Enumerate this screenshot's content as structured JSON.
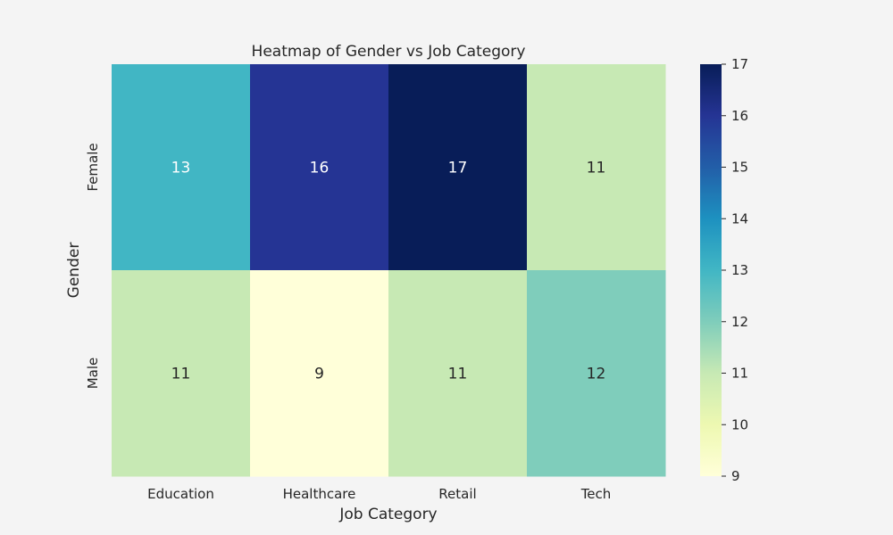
{
  "chart_data": {
    "type": "heatmap",
    "title": "Heatmap of Gender vs Job Category",
    "xlabel": "Job Category",
    "ylabel": "Gender",
    "x_categories": [
      "Education",
      "Healthcare",
      "Retail",
      "Tech"
    ],
    "y_categories": [
      "Female",
      "Male"
    ],
    "values": [
      [
        13,
        16,
        17,
        11
      ],
      [
        11,
        9,
        11,
        12
      ]
    ],
    "colormap": "YlGnBu",
    "colorbar": {
      "min": 9,
      "max": 17,
      "ticks": [
        9,
        10,
        11,
        12,
        13,
        14,
        15,
        16,
        17
      ]
    },
    "annotated": true,
    "grid": false
  }
}
